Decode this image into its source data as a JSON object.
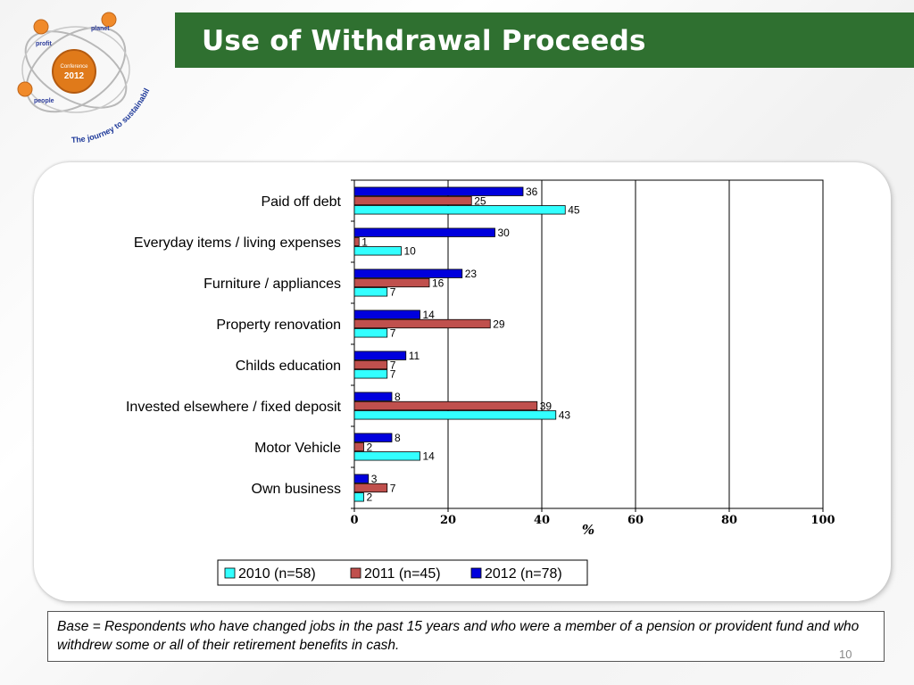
{
  "header": {
    "title": "Use of Withdrawal Proceeds"
  },
  "logo": {
    "planet": "planet",
    "profit": "profit",
    "people": "people",
    "conference": "Conference",
    "year": "2012",
    "tagline": "The journey to sustainability"
  },
  "chart_data": {
    "type": "bar",
    "orientation": "horizontal",
    "categories": [
      "Paid off debt",
      "Everyday items / living expenses",
      "Furniture / appliances",
      "Property  renovation",
      "Childs education",
      "Invested elsewhere / fixed deposit",
      "Motor Vehicle",
      "Own business"
    ],
    "series": [
      {
        "name": "2010 (n=58)",
        "color": "#33ffff",
        "values": [
          45,
          10,
          7,
          7,
          7,
          43,
          14,
          2
        ]
      },
      {
        "name": "2011 (n=45)",
        "color": "#c0504d",
        "values": [
          25,
          1,
          16,
          29,
          7,
          39,
          2,
          7
        ]
      },
      {
        "name": "2012 (n=78)",
        "color": "#0000dd",
        "values": [
          36,
          30,
          23,
          14,
          11,
          8,
          8,
          3
        ]
      }
    ],
    "xlabel": "%",
    "xlim": [
      0,
      100
    ],
    "xticks": [
      0,
      20,
      40,
      60,
      80,
      100
    ],
    "grid": true,
    "legend_position": "bottom"
  },
  "footnote": {
    "text": "Base = Respondents who have changed jobs in the past 15 years and who were a member of a pension or provident fund  and who withdrew some or all of their retirement benefits in cash."
  },
  "page": {
    "number": "10"
  }
}
